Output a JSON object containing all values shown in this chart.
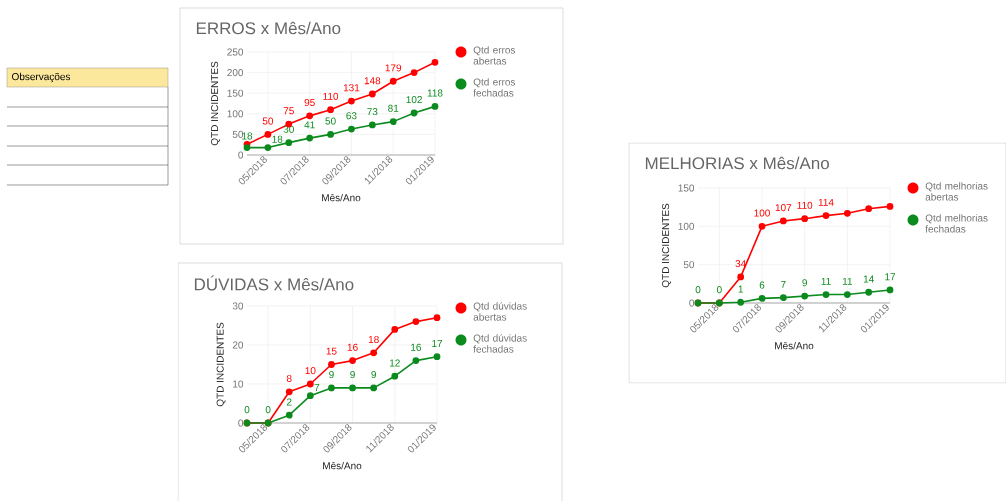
{
  "chart_data": [
    {
      "type": "other",
      "annotations": [
        "Observações"
      ]
    },
    {
      "type": "line",
      "title": "ERROS x Mês/Ano",
      "xlabel": "Mês/Ano",
      "ylabel": "QTD INCIDENTES",
      "categories": [
        null,
        "05/2018",
        null,
        "07/2018",
        null,
        "09/2018",
        null,
        "11/2018",
        null,
        "01/2019"
      ],
      "series": [
        {
          "name": "Qtd erros abertas",
          "color": "#ff0000",
          "values": [
            26,
            50,
            75,
            95,
            110,
            131,
            148,
            179,
            200,
            225
          ],
          "value_labels": [
            null,
            "50",
            "75",
            "95",
            "110",
            "131",
            "148",
            "179",
            null,
            null
          ]
        },
        {
          "name": "Qtd erros fechadas",
          "color": "#0b8a1e",
          "values": [
            18,
            18,
            30,
            41,
            50,
            63,
            73,
            81,
            102,
            118
          ],
          "value_labels": [
            "18",
            "18",
            "30",
            "41",
            "50",
            "63",
            "73",
            "81",
            "102",
            "118"
          ]
        }
      ],
      "ylim": [
        0,
        250
      ],
      "yticks": [
        0,
        50,
        100,
        150,
        200,
        250
      ],
      "grid": true,
      "legend": "right",
      "marker": "circle"
    },
    {
      "type": "line",
      "title": "DÚVIDAS x Mês/Ano",
      "xlabel": "Mês/Ano",
      "ylabel": "QTD INCIDENTES",
      "categories": [
        null,
        "05/2018",
        null,
        "07/2018",
        null,
        "09/2018",
        null,
        "11/2018",
        null,
        "01/2019"
      ],
      "series": [
        {
          "name": "Qtd dúvidas abertas",
          "color": "#ff0000",
          "values": [
            0,
            0,
            8,
            10,
            15,
            16,
            18,
            24,
            26,
            27
          ],
          "value_labels": [
            null,
            null,
            "8",
            "10",
            "15",
            "16",
            "18",
            null,
            null,
            null
          ]
        },
        {
          "name": "Qtd dúvidas fechadas",
          "color": "#0b8a1e",
          "values": [
            0,
            0,
            2,
            7,
            9,
            9,
            9,
            12,
            16,
            17
          ],
          "value_labels": [
            "0",
            "0",
            "2",
            "7",
            "9",
            "9",
            "9",
            "12",
            "16",
            "17"
          ]
        }
      ],
      "ylim": [
        0,
        30
      ],
      "yticks": [
        0,
        10,
        20,
        30
      ],
      "grid": true,
      "legend": "right",
      "marker": "circle"
    },
    {
      "type": "line",
      "title": "MELHORIAS x Mês/Ano",
      "xlabel": "Mês/Ano",
      "ylabel": "QTD INCIDENTES",
      "categories": [
        null,
        "05/2018",
        null,
        "07/2018",
        null,
        "09/2018",
        null,
        "11/2018",
        null,
        "01/2019"
      ],
      "series": [
        {
          "name": "Qtd melhorias abertas",
          "color": "#ff0000",
          "values": [
            0,
            0,
            34,
            100,
            107,
            110,
            114,
            117,
            123,
            126
          ],
          "value_labels": [
            null,
            null,
            "34",
            "100",
            "107",
            "110",
            "114",
            null,
            null,
            null
          ]
        },
        {
          "name": "Qtd melhorias fechadas",
          "color": "#0b8a1e",
          "values": [
            0,
            0,
            1,
            6,
            7,
            9,
            11,
            11,
            14,
            17
          ],
          "value_labels": [
            "0",
            "0",
            "1",
            "6",
            "7",
            "9",
            "11",
            "11",
            "14",
            "17"
          ]
        }
      ],
      "ylim": [
        0,
        150
      ],
      "yticks": [
        0,
        50,
        100,
        150
      ],
      "grid": true,
      "legend": "right",
      "marker": "circle"
    }
  ]
}
